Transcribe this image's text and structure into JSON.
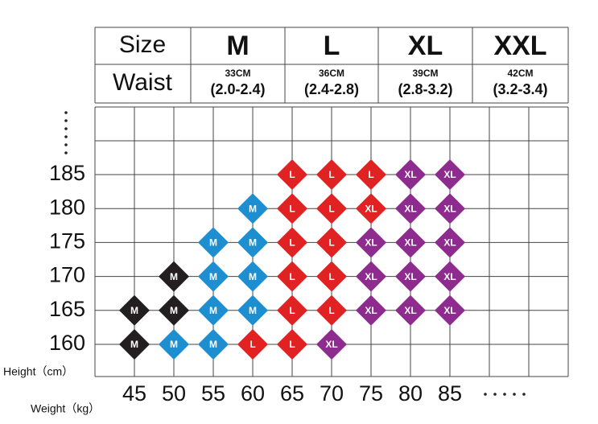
{
  "header": {
    "size_label": "Size",
    "sizes": [
      "M",
      "L",
      "XL",
      "XXL"
    ],
    "waist_label": "Waist",
    "waist": [
      {
        "cm": "33CM",
        "range": "(2.0-2.4)"
      },
      {
        "cm": "36CM",
        "range": "(2.4-2.8)"
      },
      {
        "cm": "39CM",
        "range": "(2.8-3.2)"
      },
      {
        "cm": "42CM",
        "range": "(3.2-3.4)"
      }
    ]
  },
  "grid": {
    "height_label": "Height（cm）",
    "weight_label": "Weight（kg）",
    "weights": [
      45,
      50,
      55,
      60,
      65,
      70,
      75,
      80,
      85
    ],
    "rows": [
      {
        "height": 185,
        "cells": [
          null,
          null,
          null,
          null,
          {
            "label": "L",
            "color": "#e02222"
          },
          {
            "label": "L",
            "color": "#e02222"
          },
          {
            "label": "L",
            "color": "#e02222"
          },
          {
            "label": "XL",
            "color": "#8e2b8f"
          },
          {
            "label": "XL",
            "color": "#8e2b8f"
          }
        ]
      },
      {
        "height": 180,
        "cells": [
          null,
          null,
          null,
          {
            "label": "M",
            "color": "#1d8fd1"
          },
          {
            "label": "L",
            "color": "#e02222"
          },
          {
            "label": "L",
            "color": "#e02222"
          },
          {
            "label": "XL",
            "color": "#e02222"
          },
          {
            "label": "XL",
            "color": "#8e2b8f"
          },
          {
            "label": "XL",
            "color": "#8e2b8f"
          }
        ]
      },
      {
        "height": 175,
        "cells": [
          null,
          null,
          {
            "label": "M",
            "color": "#1d8fd1"
          },
          {
            "label": "M",
            "color": "#1d8fd1"
          },
          {
            "label": "L",
            "color": "#e02222"
          },
          {
            "label": "L",
            "color": "#e02222"
          },
          {
            "label": "XL",
            "color": "#8e2b8f"
          },
          {
            "label": "XL",
            "color": "#8e2b8f"
          },
          {
            "label": "XL",
            "color": "#8e2b8f"
          }
        ]
      },
      {
        "height": 170,
        "cells": [
          null,
          {
            "label": "M",
            "color": "#231f20"
          },
          {
            "label": "M",
            "color": "#1d8fd1"
          },
          {
            "label": "M",
            "color": "#1d8fd1"
          },
          {
            "label": "L",
            "color": "#e02222"
          },
          {
            "label": "L",
            "color": "#e02222"
          },
          {
            "label": "XL",
            "color": "#8e2b8f"
          },
          {
            "label": "XL",
            "color": "#8e2b8f"
          },
          {
            "label": "XL",
            "color": "#8e2b8f"
          }
        ]
      },
      {
        "height": 165,
        "cells": [
          {
            "label": "M",
            "color": "#231f20"
          },
          {
            "label": "M",
            "color": "#231f20"
          },
          {
            "label": "M",
            "color": "#1d8fd1"
          },
          {
            "label": "M",
            "color": "#1d8fd1"
          },
          {
            "label": "L",
            "color": "#e02222"
          },
          {
            "label": "L",
            "color": "#e02222"
          },
          {
            "label": "XL",
            "color": "#8e2b8f"
          },
          {
            "label": "XL",
            "color": "#8e2b8f"
          },
          {
            "label": "XL",
            "color": "#8e2b8f"
          }
        ]
      },
      {
        "height": 160,
        "cells": [
          {
            "label": "M",
            "color": "#231f20"
          },
          {
            "label": "M",
            "color": "#1d8fd1"
          },
          {
            "label": "M",
            "color": "#1d8fd1"
          },
          {
            "label": "L",
            "color": "#e02222"
          },
          {
            "label": "L",
            "color": "#e02222"
          },
          {
            "label": "XL",
            "color": "#8e2b8f"
          },
          null,
          null,
          null
        ]
      }
    ]
  }
}
